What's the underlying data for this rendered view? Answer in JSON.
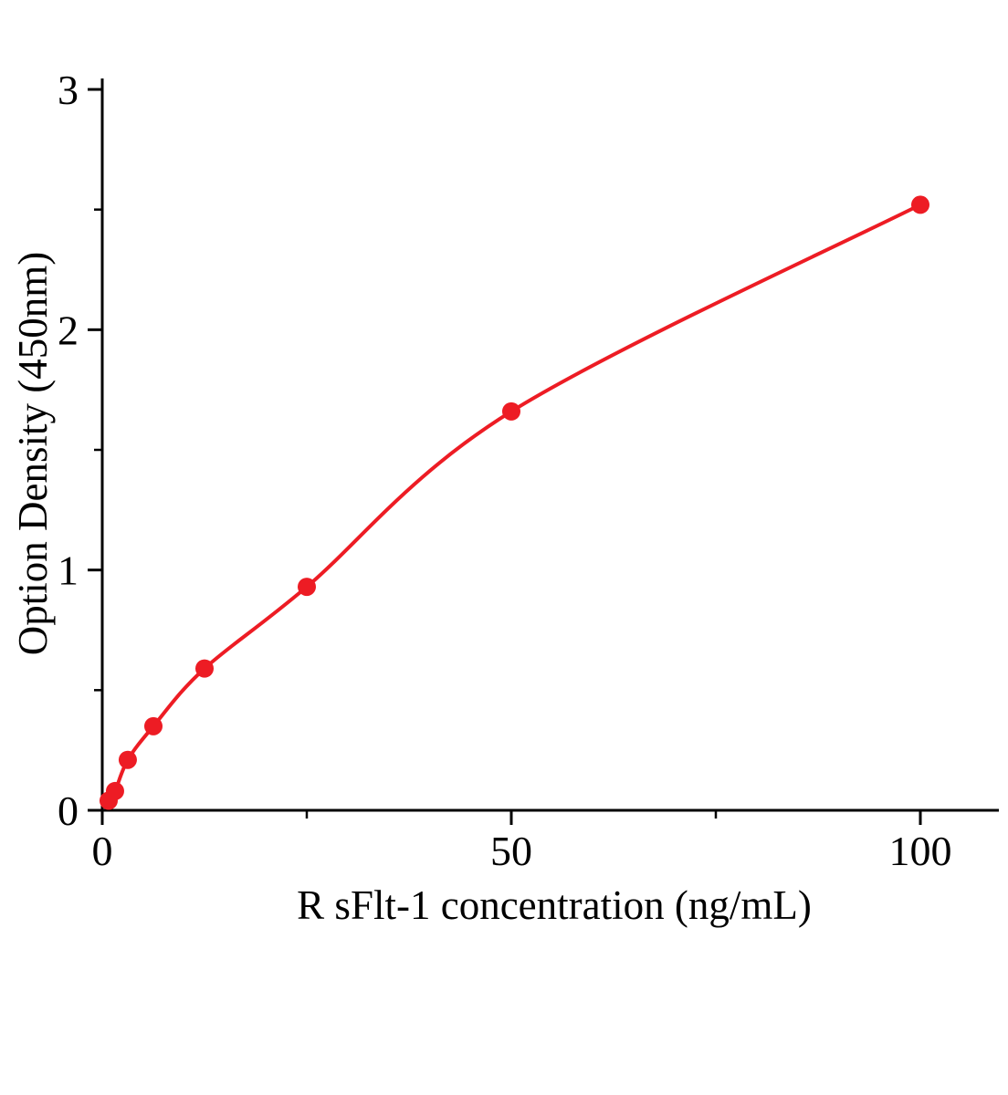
{
  "chart_data": {
    "type": "scatter",
    "title": "",
    "xlabel": "R sFlt-1  concentration (ng/mL)",
    "ylabel": "Option Density (450nm)",
    "x": [
      0.78,
      1.56,
      3.12,
      6.25,
      12.5,
      25,
      50,
      100
    ],
    "y": [
      0.04,
      0.08,
      0.21,
      0.35,
      0.59,
      0.93,
      1.66,
      2.52
    ],
    "xlim": [
      0,
      110
    ],
    "ylim": [
      0,
      3
    ],
    "x_major_ticks": [
      0,
      50,
      100
    ],
    "x_minor_ticks": [
      25,
      75
    ],
    "y_major_ticks": [
      0,
      1,
      2,
      3
    ],
    "y_minor_ticks": [
      0.5,
      1.5,
      2.5
    ],
    "curve": true,
    "curve_origin": [
      0.2,
      0.02
    ],
    "line_color": "#ed1c24",
    "marker_color": "#ed1c24",
    "axis_color": "#000000",
    "grid": false,
    "legend": null
  }
}
